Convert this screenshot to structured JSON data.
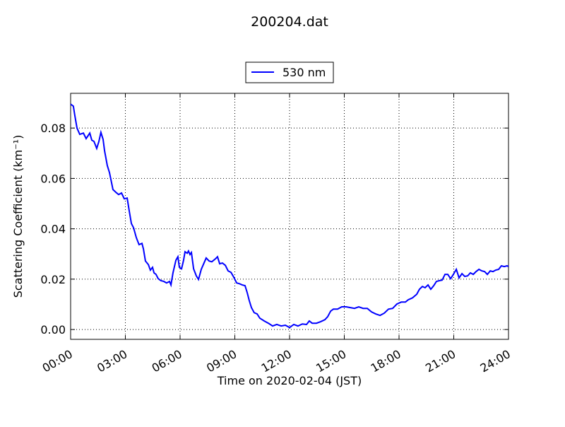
{
  "chart_data": {
    "type": "line",
    "title": "200204.dat",
    "xlabel": "Time on 2020-02-04 (JST)",
    "ylabel": "Scattering Coefficient (km⁻¹)",
    "x": [
      0,
      0.15,
      0.23,
      0.35,
      0.5,
      0.7,
      0.85,
      1.05,
      1.16,
      1.28,
      1.43,
      1.55,
      1.66,
      1.78,
      1.86,
      2.01,
      2.13,
      2.21,
      2.32,
      2.48,
      2.63,
      2.79,
      2.94,
      3.1,
      3.21,
      3.33,
      3.45,
      3.6,
      3.75,
      3.91,
      3.99,
      4.1,
      4.26,
      4.37,
      4.49,
      4.57,
      4.68,
      4.8,
      4.95,
      5.11,
      5.26,
      5.42,
      5.5,
      5.61,
      5.77,
      5.88,
      5.96,
      6.08,
      6.19,
      6.27,
      6.39,
      6.46,
      6.54,
      6.62,
      6.74,
      6.89,
      7.01,
      7.16,
      7.31,
      7.43,
      7.59,
      7.74,
      7.94,
      8.05,
      8.17,
      8.32,
      8.48,
      8.63,
      8.79,
      8.94,
      9.1,
      9.25,
      9.41,
      9.56,
      9.68,
      9.79,
      9.91,
      10.06,
      10.22,
      10.37,
      10.61,
      10.84,
      11.07,
      11.3,
      11.54,
      11.77,
      12.0,
      12.23,
      12.46,
      12.7,
      12.93,
      13.08,
      13.24,
      13.47,
      13.7,
      13.94,
      14.09,
      14.25,
      14.4,
      14.63,
      14.86,
      15.1,
      15.33,
      15.56,
      15.79,
      16.03,
      16.26,
      16.49,
      16.72,
      16.96,
      17.19,
      17.42,
      17.65,
      17.88,
      18.12,
      18.35,
      18.5,
      18.74,
      18.97,
      19.12,
      19.28,
      19.43,
      19.59,
      19.74,
      19.9,
      20.05,
      20.21,
      20.36,
      20.52,
      20.67,
      20.83,
      20.98,
      21.14,
      21.29,
      21.45,
      21.6,
      21.76,
      21.91,
      22.07,
      22.22,
      22.38,
      22.53,
      22.69,
      22.84,
      23.0,
      23.15,
      23.3,
      23.46,
      23.61,
      23.77,
      23.92,
      24.0
    ],
    "series": [
      {
        "name": "530 nm",
        "color": "#0000ff",
        "values": [
          0.0895,
          0.0887,
          0.085,
          0.08,
          0.0775,
          0.078,
          0.0758,
          0.078,
          0.0752,
          0.0747,
          0.0719,
          0.0747,
          0.0783,
          0.0755,
          0.071,
          0.0651,
          0.0623,
          0.0595,
          0.0556,
          0.0545,
          0.0536,
          0.0542,
          0.0519,
          0.0522,
          0.0472,
          0.0421,
          0.0404,
          0.0365,
          0.0337,
          0.0342,
          0.032,
          0.0272,
          0.0258,
          0.0236,
          0.0247,
          0.0225,
          0.0219,
          0.0202,
          0.0194,
          0.0191,
          0.0185,
          0.0191,
          0.0177,
          0.0225,
          0.0275,
          0.0289,
          0.0247,
          0.0241,
          0.0275,
          0.0309,
          0.0303,
          0.0312,
          0.0298,
          0.0306,
          0.0241,
          0.0213,
          0.0199,
          0.0239,
          0.0264,
          0.0284,
          0.0272,
          0.0269,
          0.0281,
          0.0289,
          0.0261,
          0.0264,
          0.0255,
          0.0233,
          0.0227,
          0.0208,
          0.0185,
          0.0182,
          0.0177,
          0.0174,
          0.0146,
          0.0115,
          0.0087,
          0.0067,
          0.0062,
          0.0045,
          0.0034,
          0.0025,
          0.0014,
          0.002,
          0.0014,
          0.0017,
          0.0008,
          0.002,
          0.0014,
          0.0022,
          0.002,
          0.0034,
          0.0025,
          0.0025,
          0.0031,
          0.0039,
          0.0051,
          0.0073,
          0.0081,
          0.0081,
          0.009,
          0.009,
          0.0087,
          0.0084,
          0.009,
          0.0084,
          0.0084,
          0.007,
          0.0062,
          0.0056,
          0.0065,
          0.0081,
          0.0084,
          0.0101,
          0.0109,
          0.0109,
          0.0118,
          0.0126,
          0.014,
          0.016,
          0.0171,
          0.0166,
          0.0177,
          0.016,
          0.0174,
          0.0191,
          0.0194,
          0.0196,
          0.0219,
          0.0219,
          0.0202,
          0.0219,
          0.0239,
          0.0205,
          0.0222,
          0.0211,
          0.0213,
          0.0225,
          0.0219,
          0.023,
          0.0239,
          0.0233,
          0.023,
          0.0219,
          0.0233,
          0.023,
          0.0236,
          0.0239,
          0.0253,
          0.025,
          0.0253,
          0.025
        ]
      }
    ],
    "xlim": [
      0,
      24
    ],
    "xticks": [
      {
        "value": 0,
        "label": "00:00"
      },
      {
        "value": 3,
        "label": "03:00"
      },
      {
        "value": 6,
        "label": "06:00"
      },
      {
        "value": 9,
        "label": "09:00"
      },
      {
        "value": 12,
        "label": "12:00"
      },
      {
        "value": 15,
        "label": "15:00"
      },
      {
        "value": 18,
        "label": "18:00"
      },
      {
        "value": 21,
        "label": "21:00"
      },
      {
        "value": 24,
        "label": "24:00"
      }
    ],
    "ylim": [
      -0.0039,
      0.0938
    ],
    "yticks": [
      {
        "value": 0,
        "label": "0.00"
      },
      {
        "value": 0.02,
        "label": "0.02"
      },
      {
        "value": 0.04,
        "label": "0.04"
      },
      {
        "value": 0.06,
        "label": "0.06"
      },
      {
        "value": 0.08,
        "label": "0.08"
      }
    ],
    "grid": true,
    "legend": "top"
  }
}
